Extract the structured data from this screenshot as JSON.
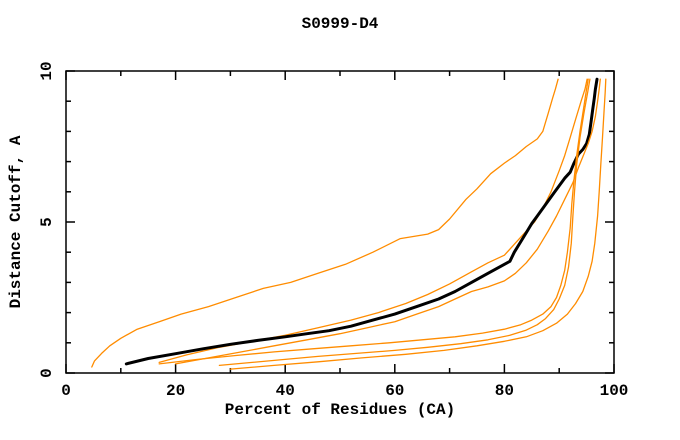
{
  "page": {
    "background": "#ffffff"
  },
  "chart_data": {
    "type": "line",
    "title": "S0999-D4",
    "xlabel": "Percent of Residues (CA)",
    "ylabel": "Distance Cutoff, A",
    "xlim": [
      0,
      100
    ],
    "ylim": [
      0,
      10
    ],
    "grid": false,
    "legend_position": "none",
    "x_ticks": {
      "major": [
        0,
        20,
        40,
        60,
        80,
        100
      ],
      "minor": [
        10,
        30,
        50,
        70,
        90
      ]
    },
    "y_ticks": {
      "major": [
        0,
        5,
        10
      ],
      "minor": [
        1,
        2,
        3,
        4,
        6,
        7,
        8,
        9
      ]
    },
    "colors": {
      "highlight_curve": "#000000",
      "model_curves": "#ff8c00",
      "axis": "#000000"
    },
    "series": [
      {
        "name": "model-orange-high",
        "color": "#ff8c00",
        "width": 1.3,
        "points": [
          [
            4.7,
            0.2
          ],
          [
            5.2,
            0.4
          ],
          [
            6.5,
            0.65
          ],
          [
            8,
            0.9
          ],
          [
            10,
            1.15
          ],
          [
            13,
            1.45
          ],
          [
            17,
            1.7
          ],
          [
            21,
            1.95
          ],
          [
            26,
            2.2
          ],
          [
            31,
            2.5
          ],
          [
            36,
            2.8
          ],
          [
            41,
            3.0
          ],
          [
            46,
            3.3
          ],
          [
            51,
            3.6
          ],
          [
            56,
            4.0
          ],
          [
            61,
            4.45
          ],
          [
            66,
            4.6
          ],
          [
            68,
            4.75
          ],
          [
            70,
            5.1
          ],
          [
            73,
            5.75
          ],
          [
            75,
            6.1
          ],
          [
            77.5,
            6.6
          ],
          [
            80,
            6.95
          ],
          [
            82,
            7.2
          ],
          [
            84,
            7.5
          ],
          [
            86,
            7.75
          ],
          [
            87,
            8.0
          ],
          [
            88,
            8.6
          ],
          [
            88.8,
            9.1
          ],
          [
            89.3,
            9.4
          ],
          [
            89.8,
            9.73
          ]
        ]
      },
      {
        "name": "model-orange-upper",
        "color": "#ff8c00",
        "width": 1.3,
        "points": [
          [
            17,
            0.35
          ],
          [
            22,
            0.6
          ],
          [
            28,
            0.85
          ],
          [
            34,
            1.05
          ],
          [
            40,
            1.25
          ],
          [
            46,
            1.5
          ],
          [
            52,
            1.75
          ],
          [
            57,
            2.0
          ],
          [
            62,
            2.3
          ],
          [
            66,
            2.6
          ],
          [
            70,
            2.95
          ],
          [
            74,
            3.35
          ],
          [
            77,
            3.65
          ],
          [
            80,
            3.9
          ],
          [
            82,
            4.3
          ],
          [
            84,
            4.7
          ],
          [
            85.5,
            5.0
          ],
          [
            87,
            5.45
          ],
          [
            88.5,
            6.0
          ],
          [
            90,
            6.7
          ],
          [
            91,
            7.2
          ],
          [
            92,
            7.8
          ],
          [
            93,
            8.4
          ],
          [
            94,
            9.0
          ],
          [
            94.7,
            9.4
          ],
          [
            95.1,
            9.73
          ]
        ]
      },
      {
        "name": "highlight-black",
        "color": "#000000",
        "width": 3,
        "points": [
          [
            11,
            0.3
          ],
          [
            15,
            0.48
          ],
          [
            20,
            0.64
          ],
          [
            25,
            0.8
          ],
          [
            30,
            0.95
          ],
          [
            35,
            1.08
          ],
          [
            40,
            1.2
          ],
          [
            44,
            1.3
          ],
          [
            48,
            1.4
          ],
          [
            52,
            1.55
          ],
          [
            56,
            1.75
          ],
          [
            60,
            1.95
          ],
          [
            64,
            2.2
          ],
          [
            68,
            2.45
          ],
          [
            71,
            2.7
          ],
          [
            74,
            3.0
          ],
          [
            77,
            3.3
          ],
          [
            79.5,
            3.55
          ],
          [
            81,
            3.7
          ],
          [
            81.8,
            4.0
          ],
          [
            83,
            4.35
          ],
          [
            84,
            4.65
          ],
          [
            85,
            4.95
          ],
          [
            86,
            5.2
          ],
          [
            87,
            5.45
          ],
          [
            88,
            5.7
          ],
          [
            89,
            5.95
          ],
          [
            90,
            6.2
          ],
          [
            91,
            6.45
          ],
          [
            92,
            6.65
          ],
          [
            92.7,
            6.95
          ],
          [
            93.5,
            7.25
          ],
          [
            94.3,
            7.4
          ],
          [
            95,
            7.6
          ],
          [
            95.5,
            7.9
          ],
          [
            95.8,
            8.3
          ],
          [
            96.1,
            8.7
          ],
          [
            96.4,
            9.1
          ],
          [
            96.6,
            9.4
          ],
          [
            96.9,
            9.73
          ]
        ]
      },
      {
        "name": "model-orange-lower",
        "color": "#ff8c00",
        "width": 1.3,
        "points": [
          [
            20,
            0.3
          ],
          [
            26,
            0.5
          ],
          [
            32,
            0.7
          ],
          [
            38,
            0.9
          ],
          [
            44,
            1.1
          ],
          [
            50,
            1.3
          ],
          [
            55,
            1.5
          ],
          [
            60,
            1.7
          ],
          [
            64,
            1.95
          ],
          [
            68,
            2.2
          ],
          [
            71,
            2.45
          ],
          [
            74,
            2.7
          ],
          [
            77,
            2.85
          ],
          [
            80,
            3.05
          ],
          [
            82,
            3.3
          ],
          [
            84,
            3.65
          ],
          [
            86,
            4.1
          ],
          [
            88,
            4.7
          ],
          [
            89.5,
            5.2
          ],
          [
            91,
            5.75
          ],
          [
            92.5,
            6.3
          ],
          [
            93.5,
            6.8
          ],
          [
            94.5,
            7.25
          ],
          [
            95.3,
            7.6
          ],
          [
            96,
            8.0
          ],
          [
            96.6,
            8.5
          ],
          [
            97,
            9.0
          ],
          [
            97.3,
            9.4
          ],
          [
            97.5,
            9.73
          ]
        ]
      },
      {
        "name": "model-orange-flat-1",
        "color": "#ff8c00",
        "width": 1.3,
        "points": [
          [
            17,
            0.3
          ],
          [
            24,
            0.45
          ],
          [
            31,
            0.58
          ],
          [
            38,
            0.7
          ],
          [
            45,
            0.8
          ],
          [
            52,
            0.9
          ],
          [
            59,
            1.0
          ],
          [
            65,
            1.1
          ],
          [
            71,
            1.2
          ],
          [
            76,
            1.32
          ],
          [
            80,
            1.45
          ],
          [
            83,
            1.6
          ],
          [
            85,
            1.75
          ],
          [
            87,
            1.95
          ],
          [
            88.5,
            2.2
          ],
          [
            89.5,
            2.5
          ],
          [
            90.3,
            2.9
          ],
          [
            91,
            3.4
          ],
          [
            91.5,
            4.0
          ],
          [
            92,
            4.8
          ],
          [
            92.3,
            5.6
          ],
          [
            92.7,
            6.4
          ],
          [
            93.2,
            7.2
          ],
          [
            93.8,
            8.0
          ],
          [
            94.4,
            8.7
          ],
          [
            94.9,
            9.3
          ],
          [
            95.3,
            9.73
          ]
        ]
      },
      {
        "name": "model-orange-flat-2",
        "color": "#ff8c00",
        "width": 1.3,
        "points": [
          [
            28,
            0.25
          ],
          [
            34,
            0.35
          ],
          [
            40,
            0.45
          ],
          [
            46,
            0.55
          ],
          [
            53,
            0.65
          ],
          [
            60,
            0.75
          ],
          [
            66,
            0.85
          ],
          [
            72,
            0.97
          ],
          [
            77,
            1.1
          ],
          [
            81,
            1.25
          ],
          [
            84,
            1.42
          ],
          [
            86,
            1.6
          ],
          [
            87.5,
            1.8
          ],
          [
            89,
            2.1
          ],
          [
            90,
            2.45
          ],
          [
            91,
            2.9
          ],
          [
            91.7,
            3.5
          ],
          [
            92.2,
            4.3
          ],
          [
            92.5,
            5.2
          ],
          [
            92.8,
            6.0
          ],
          [
            93.2,
            6.9
          ],
          [
            93.8,
            7.8
          ],
          [
            94.5,
            8.6
          ],
          [
            95.2,
            9.3
          ],
          [
            95.6,
            9.73
          ]
        ]
      },
      {
        "name": "model-orange-flat-3",
        "color": "#ff8c00",
        "width": 1.3,
        "points": [
          [
            30,
            0.13
          ],
          [
            38,
            0.25
          ],
          [
            46,
            0.37
          ],
          [
            54,
            0.5
          ],
          [
            62,
            0.62
          ],
          [
            69,
            0.75
          ],
          [
            75,
            0.9
          ],
          [
            80,
            1.05
          ],
          [
            84,
            1.2
          ],
          [
            87,
            1.4
          ],
          [
            89.5,
            1.65
          ],
          [
            91.5,
            1.95
          ],
          [
            93,
            2.3
          ],
          [
            94.3,
            2.7
          ],
          [
            95.3,
            3.2
          ],
          [
            96,
            3.7
          ],
          [
            96.5,
            4.3
          ],
          [
            97,
            5.2
          ],
          [
            97.3,
            6.0
          ],
          [
            97.6,
            6.9
          ],
          [
            97.9,
            7.8
          ],
          [
            98.2,
            8.7
          ],
          [
            98.4,
            9.3
          ],
          [
            98.5,
            9.73
          ]
        ]
      }
    ]
  }
}
